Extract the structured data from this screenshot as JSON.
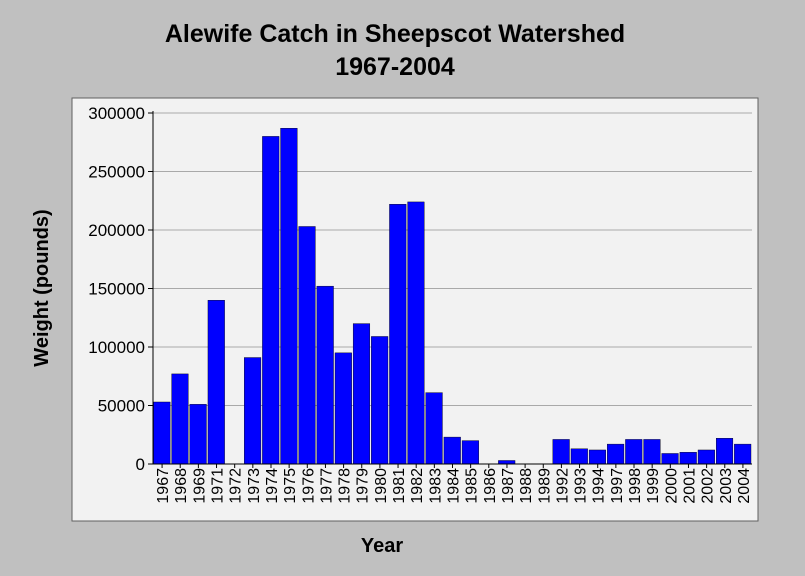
{
  "chart_data": {
    "type": "bar",
    "title": [
      "Alewife Catch in Sheepscot Watershed",
      "1967-2004"
    ],
    "xlabel": "Year",
    "ylabel": "Weight (pounds)",
    "ylim": [
      0,
      300000
    ],
    "yticks": [
      "0",
      "50000",
      "100000",
      "150000",
      "200000",
      "250000",
      "300000"
    ],
    "grid": "horizontal",
    "bar_color": "#0000ff",
    "plot_background": "#f2f2f2",
    "categories": [
      "1967",
      "1968",
      "1969",
      "1971",
      "1972",
      "1973",
      "1974",
      "1975",
      "1976",
      "1977",
      "1978",
      "1979",
      "1980",
      "1981",
      "1982",
      "1983",
      "1984",
      "1985",
      "1986",
      "1987",
      "1988",
      "1989",
      "1992",
      "1993",
      "1994",
      "1997",
      "1998",
      "1999",
      "2000",
      "2001",
      "2002",
      "2003",
      "2004"
    ],
    "values": [
      53000,
      77000,
      51000,
      140000,
      0,
      91000,
      280000,
      287000,
      203000,
      152000,
      95000,
      120000,
      109000,
      222000,
      224000,
      61000,
      23000,
      20000,
      0,
      3000,
      0,
      0,
      21000,
      13000,
      12000,
      17000,
      21000,
      21000,
      9000,
      10000,
      12000,
      22000,
      17000
    ]
  }
}
